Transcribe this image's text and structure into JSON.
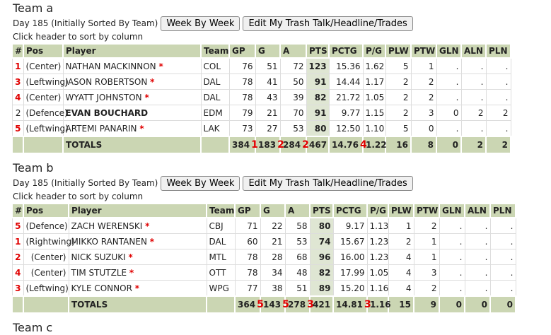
{
  "teams": [
    {
      "title": "Team a",
      "info": "Day 185 (Initially Sorted By Team)",
      "buttons": [
        "Week By Week",
        "Edit My Trash Talk/Headline/Trades"
      ],
      "note": "Click header to sort by column",
      "columns": [
        "#",
        "Pos",
        "Player",
        "Team",
        "GP",
        "G",
        "A",
        "PTS",
        "PCTG",
        "P/G",
        "PLW",
        "PTW",
        "GLN",
        "ALN",
        "PLN"
      ],
      "rows": [
        {
          "rank": "1",
          "pos": "(Center)",
          "player": "NATHAN MACKINNON",
          "star": "*",
          "team": "COL",
          "stats": [
            "76",
            "51",
            "72",
            "123",
            "15.36",
            "1.62",
            "5",
            "1",
            ".",
            ".",
            "."
          ]
        },
        {
          "rank": "3",
          "pos": "(Leftwing)",
          "player": "JASON ROBERTSON",
          "star": "*",
          "team": "DAL",
          "stats": [
            "78",
            "41",
            "50",
            "91",
            "14.44",
            "1.17",
            "2",
            "2",
            ".",
            ".",
            "."
          ]
        },
        {
          "rank": "4",
          "pos": "(Center)",
          "player": "WYATT JOHNSTON",
          "star": "*",
          "team": "DAL",
          "stats": [
            "78",
            "43",
            "39",
            "82",
            "21.72",
            "1.05",
            "2",
            "2",
            ".",
            ".",
            "."
          ]
        },
        {
          "rank": "2",
          "pos": "(Defence)",
          "player": "EVAN BOUCHARD",
          "team": "EDM",
          "stats": [
            "79",
            "21",
            "70",
            "91",
            "9.77",
            "1.15",
            "2",
            "3",
            "0",
            "2",
            "2"
          ]
        },
        {
          "rank": "5",
          "pos": "(Leftwing)",
          "player": "ARTEMI PANARIN",
          "star": "*",
          "team": "LAK",
          "stats": [
            "73",
            "27",
            "53",
            "80",
            "12.50",
            "1.10",
            "5",
            "0",
            ".",
            ".",
            "."
          ]
        }
      ],
      "totals": {
        "label": "TOTALS",
        "values": [
          {
            "value": "384",
            "rank": "1"
          },
          {
            "value": "183",
            "rank": "2"
          },
          {
            "value": "284",
            "rank": "2"
          },
          {
            "value": "467"
          },
          {
            "value": "14.76",
            "rank": "4"
          },
          {
            "value": "1.22"
          },
          {
            "value": "16"
          },
          {
            "value": "8"
          },
          {
            "value": "0"
          },
          {
            "value": "2"
          },
          {
            "value": "2"
          }
        ]
      }
    },
    {
      "title": "Team b",
      "info": "Day 185 (Initially Sorted By Team)",
      "buttons": [
        "Week By Week",
        "Edit My Trash Talk/Headline/Trades"
      ],
      "note": "Click header to sort by column",
      "columns": [
        "#",
        "Pos",
        "Player",
        "Team",
        "GP",
        "G",
        "A",
        "PTS",
        "PCTG",
        "P/G",
        "PLW",
        "PTW",
        "GLN",
        "ALN",
        "PLN"
      ],
      "rows": [
        {
          "rank": "5",
          "pos": "(Defence)",
          "player": "ZACH WERENSKI",
          "star": "*",
          "team": "CBJ",
          "stats": [
            "71",
            "22",
            "58",
            "80",
            "9.17",
            "1.13",
            "1",
            "2",
            ".",
            ".",
            "."
          ]
        },
        {
          "rank": "1",
          "pos": "(Rightwing)",
          "player": "MIKKO RANTANEN",
          "star": "*",
          "team": "DAL",
          "stats": [
            "60",
            "21",
            "53",
            "74",
            "15.67",
            "1.23",
            "2",
            "1",
            ".",
            ".",
            "."
          ]
        },
        {
          "rank": "2",
          "pos": "(Center)",
          "player": "NICK SUZUKI",
          "star": "*",
          "team": "MTL",
          "stats": [
            "78",
            "28",
            "68",
            "96",
            "16.00",
            "1.23",
            "4",
            "1",
            ".",
            ".",
            "."
          ]
        },
        {
          "rank": "4",
          "pos": "(Center)",
          "player": "TIM STUTZLE",
          "star": "*",
          "team": "OTT",
          "stats": [
            "78",
            "34",
            "48",
            "82",
            "17.99",
            "1.05",
            "4",
            "3",
            ".",
            ".",
            "."
          ]
        },
        {
          "rank": "3",
          "pos": "(Leftwing)",
          "player": "KYLE CONNOR",
          "star": "*",
          "team": "WPG",
          "stats": [
            "77",
            "38",
            "51",
            "89",
            "15.20",
            "1.16",
            "4",
            "2",
            ".",
            ".",
            "."
          ]
        }
      ],
      "totals": {
        "label": "TOTALS",
        "values": [
          {
            "value": "364",
            "rank": "5"
          },
          {
            "value": "143",
            "rank": "5"
          },
          {
            "value": "278",
            "rank": "3"
          },
          {
            "value": "421"
          },
          {
            "value": "14.81",
            "rank": "3"
          },
          {
            "value": "1.16"
          },
          {
            "value": "15"
          },
          {
            "value": "9"
          },
          {
            "value": "0"
          },
          {
            "value": "0"
          },
          {
            "value": "0"
          }
        ]
      }
    },
    {
      "title": "Team c"
    }
  ]
}
